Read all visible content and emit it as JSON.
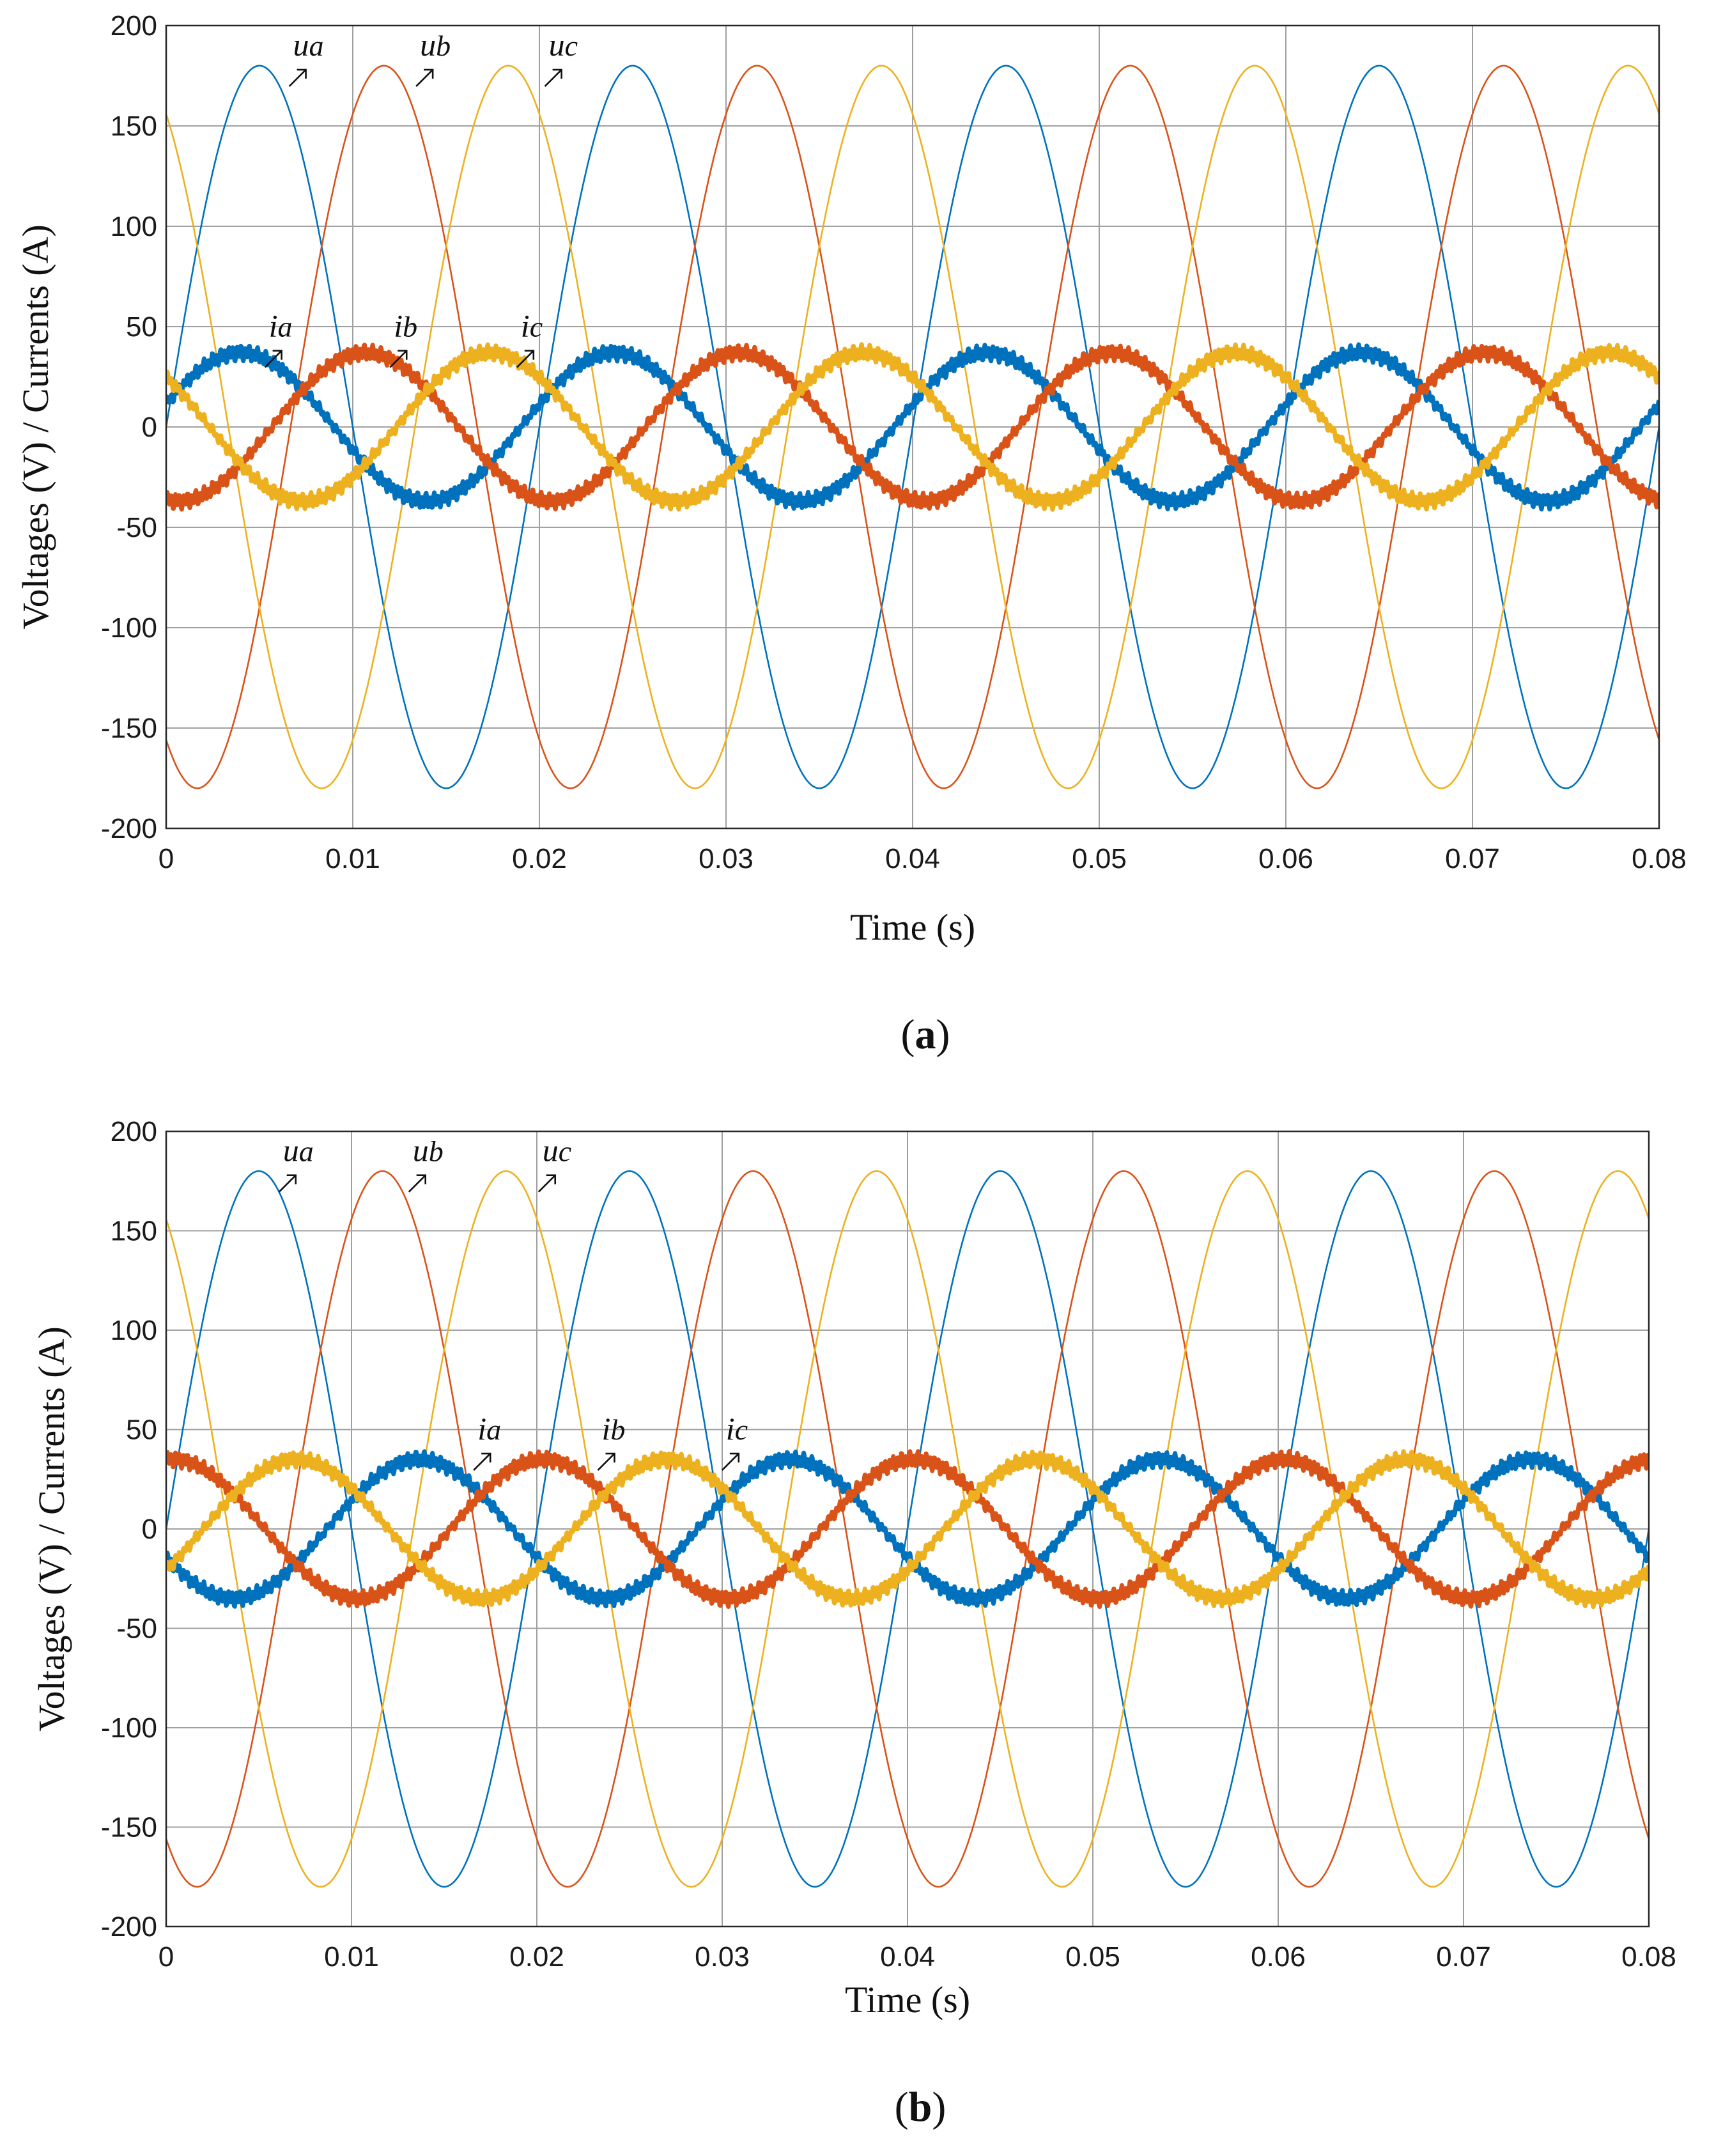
{
  "colors": {
    "phase_a": "#0072BD",
    "phase_b": "#D95319",
    "phase_c": "#EDB120"
  },
  "chart_data": [
    {
      "panel": "a",
      "type": "line",
      "caption_letter": "a",
      "xlabel": "Time (s)",
      "ylabel": "Voltages (V) / Currents (A)",
      "xlim": [
        0,
        0.08
      ],
      "ylim": [
        -200,
        200
      ],
      "xticks": [
        0,
        0.01,
        0.02,
        0.03,
        0.04,
        0.05,
        0.06,
        0.07,
        0.08
      ],
      "xtick_labels": [
        "0",
        "0.01",
        "0.02",
        "0.03",
        "0.04",
        "0.05",
        "0.06",
        "0.07",
        "0.08"
      ],
      "yticks": [
        -200,
        -150,
        -100,
        -50,
        0,
        50,
        100,
        150,
        200
      ],
      "ytick_labels": [
        "-200",
        "-150",
        "-100",
        "-50",
        "0",
        "50",
        "100",
        "150",
        "200"
      ],
      "grid": true,
      "frequency_hz": 50,
      "series": [
        {
          "name": "ua",
          "kind": "voltage",
          "amplitude": 180,
          "phase_deg": 0,
          "color": "#0072BD"
        },
        {
          "name": "ub",
          "kind": "voltage",
          "amplitude": 180,
          "phase_deg": -120,
          "color": "#D95319"
        },
        {
          "name": "uc",
          "kind": "voltage",
          "amplitude": 180,
          "phase_deg": 120,
          "color": "#EDB120"
        },
        {
          "name": "ia",
          "kind": "current",
          "amplitude": 37,
          "phase_deg": 18,
          "ripple": 3,
          "color": "#0072BD"
        },
        {
          "name": "ib",
          "kind": "current",
          "amplitude": 37,
          "phase_deg": -102,
          "ripple": 3,
          "color": "#D95319"
        },
        {
          "name": "ic",
          "kind": "current",
          "amplitude": 37,
          "phase_deg": 138,
          "ripple": 3,
          "color": "#EDB120"
        }
      ],
      "annotations": [
        {
          "main": "u",
          "sub": "a",
          "x": 0.0068,
          "y": 185
        },
        {
          "main": "u",
          "sub": "b",
          "x": 0.0136,
          "y": 185
        },
        {
          "main": "u",
          "sub": "c",
          "x": 0.0205,
          "y": 185
        },
        {
          "main": "i",
          "sub": "a",
          "x": 0.0055,
          "y": 45
        },
        {
          "main": "i",
          "sub": "b",
          "x": 0.0122,
          "y": 45
        },
        {
          "main": "i",
          "sub": "c",
          "x": 0.019,
          "y": 45
        }
      ]
    },
    {
      "panel": "b",
      "type": "line",
      "caption_letter": "b",
      "xlabel": "Time (s)",
      "ylabel": "Voltages (V) / Currents (A)",
      "xlim": [
        0,
        0.08
      ],
      "ylim": [
        -200,
        200
      ],
      "xticks": [
        0,
        0.01,
        0.02,
        0.03,
        0.04,
        0.05,
        0.06,
        0.07,
        0.08
      ],
      "xtick_labels": [
        "0",
        "0.01",
        "0.02",
        "0.03",
        "0.04",
        "0.05",
        "0.06",
        "0.07",
        "0.08"
      ],
      "yticks": [
        -200,
        -150,
        -100,
        -50,
        0,
        50,
        100,
        150,
        200
      ],
      "ytick_labels": [
        "-200",
        "-150",
        "-100",
        "-50",
        "0",
        "50",
        "100",
        "150",
        "200"
      ],
      "grid": true,
      "frequency_hz": 50,
      "series": [
        {
          "name": "ua",
          "kind": "voltage",
          "amplitude": 180,
          "phase_deg": 0,
          "color": "#0072BD"
        },
        {
          "name": "ub",
          "kind": "voltage",
          "amplitude": 180,
          "phase_deg": -120,
          "color": "#D95319"
        },
        {
          "name": "uc",
          "kind": "voltage",
          "amplitude": 180,
          "phase_deg": 120,
          "color": "#EDB120"
        },
        {
          "name": "ia",
          "kind": "current",
          "amplitude": 35,
          "phase_deg": -156,
          "ripple": 3,
          "color": "#0072BD"
        },
        {
          "name": "ib",
          "kind": "current",
          "amplitude": 35,
          "phase_deg": 84,
          "ripple": 3,
          "color": "#D95319"
        },
        {
          "name": "ic",
          "kind": "current",
          "amplitude": 35,
          "phase_deg": -36,
          "ripple": 3,
          "color": "#EDB120"
        }
      ],
      "annotations": [
        {
          "main": "u",
          "sub": "a",
          "x": 0.0063,
          "y": 185
        },
        {
          "main": "u",
          "sub": "b",
          "x": 0.0133,
          "y": 185
        },
        {
          "main": "u",
          "sub": "c",
          "x": 0.0203,
          "y": 185
        },
        {
          "main": "i",
          "sub": "a",
          "x": 0.0168,
          "y": 45
        },
        {
          "main": "i",
          "sub": "b",
          "x": 0.0235,
          "y": 45
        },
        {
          "main": "i",
          "sub": "c",
          "x": 0.0302,
          "y": 45
        }
      ]
    }
  ]
}
